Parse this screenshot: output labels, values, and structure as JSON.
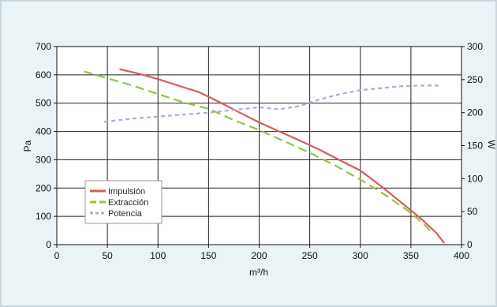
{
  "chart_data": {
    "type": "line",
    "title": "",
    "xlabel": "m³/h",
    "ylabel": "Pa",
    "y2label": "W",
    "xlim": [
      0,
      400
    ],
    "ylim": [
      0,
      700
    ],
    "y2lim": [
      0,
      300
    ],
    "x_ticks": [
      "0",
      "50",
      "100",
      "150",
      "200",
      "250",
      "300",
      "350",
      "400"
    ],
    "y_ticks": [
      "0",
      "100",
      "200",
      "300",
      "400",
      "500",
      "600",
      "700"
    ],
    "y2_ticks": [
      "0",
      "50",
      "100",
      "150",
      "200",
      "250",
      "300"
    ],
    "grid": true,
    "legend_position": "bottom-left",
    "series": [
      {
        "name": "Impulsión",
        "axis": "left",
        "color": "#d95a5a",
        "dash": "solid",
        "x": [
          62,
          80,
          100,
          120,
          140,
          160,
          180,
          200,
          220,
          240,
          260,
          280,
          300,
          320,
          340,
          360,
          375,
          383
        ],
        "y": [
          620,
          605,
          585,
          562,
          540,
          505,
          468,
          432,
          400,
          368,
          335,
          298,
          262,
          208,
          150,
          92,
          42,
          5
        ]
      },
      {
        "name": "Extracción",
        "axis": "left",
        "color": "#8ec63f",
        "dash": "long",
        "x": [
          27,
          50,
          75,
          100,
          125,
          150,
          175,
          200,
          225,
          250,
          275,
          300,
          325,
          350,
          365,
          371
        ],
        "y": [
          612,
          588,
          562,
          532,
          503,
          480,
          440,
          405,
          365,
          325,
          280,
          230,
          175,
          112,
          65,
          40
        ]
      },
      {
        "name": "Potencia",
        "axis": "right",
        "color": "#b2a9d6",
        "dash": "short",
        "x": [
          47,
          75,
          100,
          125,
          150,
          175,
          200,
          220,
          240,
          260,
          280,
          300,
          320,
          340,
          360,
          380
        ],
        "y": [
          186,
          191,
          194,
          197,
          200,
          204,
          208,
          205,
          210,
          220,
          228,
          234,
          237,
          240,
          241,
          241
        ]
      }
    ]
  }
}
